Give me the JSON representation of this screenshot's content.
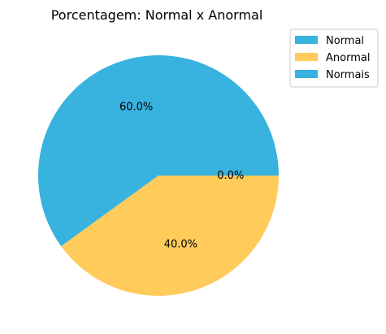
{
  "chart_data": {
    "type": "pie",
    "title": "Porcentagem: Normal x Anormal",
    "slices": [
      {
        "label": "Normal",
        "value": 60.0,
        "pct_label": "60.0%",
        "color": "#38b2de"
      },
      {
        "label": "Anormal",
        "value": 40.0,
        "pct_label": "40.0%",
        "color": "#ffcb5b"
      },
      {
        "label": "Normais",
        "value": 0.0,
        "pct_label": "0.0%",
        "color": "#38b2de"
      }
    ],
    "legend_placement": "upper-right-outside",
    "start_angle": 0,
    "direction": "counterclockwise"
  }
}
